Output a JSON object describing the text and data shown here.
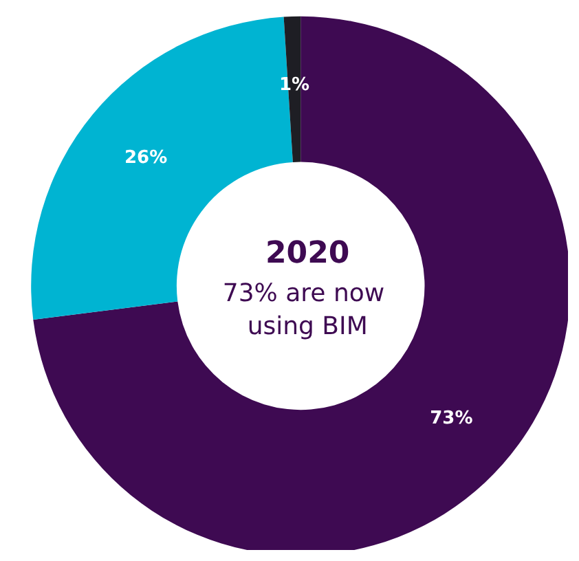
{
  "chart_data": {
    "type": "donut",
    "title": "2020",
    "subtitle": "73% are now using BIM",
    "categories": [
      null,
      null,
      null
    ],
    "values": [
      73,
      26,
      1
    ],
    "colors": [
      "#3e0a52",
      "#00b4d2",
      "#1e1e24"
    ],
    "value_labels": [
      "73%",
      "26%",
      "1%"
    ]
  }
}
